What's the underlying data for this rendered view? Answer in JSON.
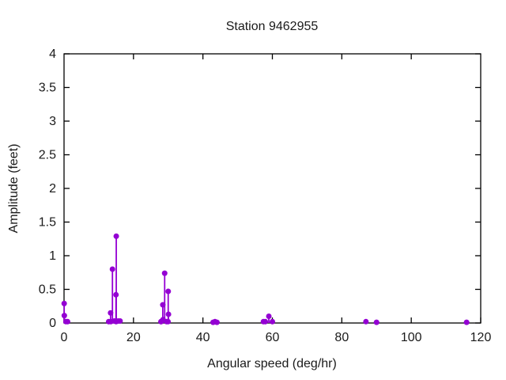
{
  "chart_data": {
    "type": "stem",
    "title": "Station 9462955",
    "xlabel": "Angular speed (deg/hr)",
    "ylabel": "Amplitude (feet)",
    "xlim": [
      0,
      120
    ],
    "ylim": [
      0,
      4
    ],
    "grid": false,
    "legend": "none",
    "marker_color": "#9400d3",
    "axis_color": "#000000",
    "text_color": "#1a1a1a",
    "background_color": "#ffffff",
    "x_major_ticks": [
      {
        "value": 0,
        "label": "0"
      },
      {
        "value": 20,
        "label": "20"
      },
      {
        "value": 40,
        "label": "40"
      },
      {
        "value": 60,
        "label": "60"
      },
      {
        "value": 80,
        "label": "80"
      },
      {
        "value": 100,
        "label": "100"
      },
      {
        "value": 120,
        "label": "120"
      }
    ],
    "y_major_ticks": [
      {
        "value": 0,
        "label": "0"
      },
      {
        "value": 0.5,
        "label": "0.5"
      },
      {
        "value": 1,
        "label": "1"
      },
      {
        "value": 1.5,
        "label": "1.5"
      },
      {
        "value": 2,
        "label": "2"
      },
      {
        "value": 2.5,
        "label": "2.5"
      },
      {
        "value": 3,
        "label": "3"
      },
      {
        "value": 3.5,
        "label": "3.5"
      },
      {
        "value": 4,
        "label": "4"
      }
    ],
    "points": [
      [
        0.04,
        0.29
      ],
      [
        0.08,
        0.11
      ],
      [
        0.54,
        0.02
      ],
      [
        1.02,
        0.02
      ],
      [
        12.85,
        0.02
      ],
      [
        13.4,
        0.15
      ],
      [
        13.47,
        0.02
      ],
      [
        13.94,
        0.8
      ],
      [
        14.5,
        0.03
      ],
      [
        14.96,
        0.42
      ],
      [
        15.0,
        0.02
      ],
      [
        15.04,
        1.29
      ],
      [
        15.58,
        0.03
      ],
      [
        16.14,
        0.03
      ],
      [
        27.9,
        0.02
      ],
      [
        27.97,
        0.02
      ],
      [
        28.44,
        0.27
      ],
      [
        28.51,
        0.05
      ],
      [
        28.98,
        0.74
      ],
      [
        29.53,
        0.02
      ],
      [
        29.96,
        0.02
      ],
      [
        30.0,
        0.47
      ],
      [
        30.08,
        0.13
      ],
      [
        42.93,
        0.01
      ],
      [
        43.48,
        0.02
      ],
      [
        44.03,
        0.01
      ],
      [
        57.42,
        0.02
      ],
      [
        57.97,
        0.02
      ],
      [
        58.98,
        0.1
      ],
      [
        60.0,
        0.02
      ],
      [
        86.95,
        0.02
      ],
      [
        90.0,
        0.01
      ],
      [
        115.94,
        0.01
      ]
    ]
  }
}
